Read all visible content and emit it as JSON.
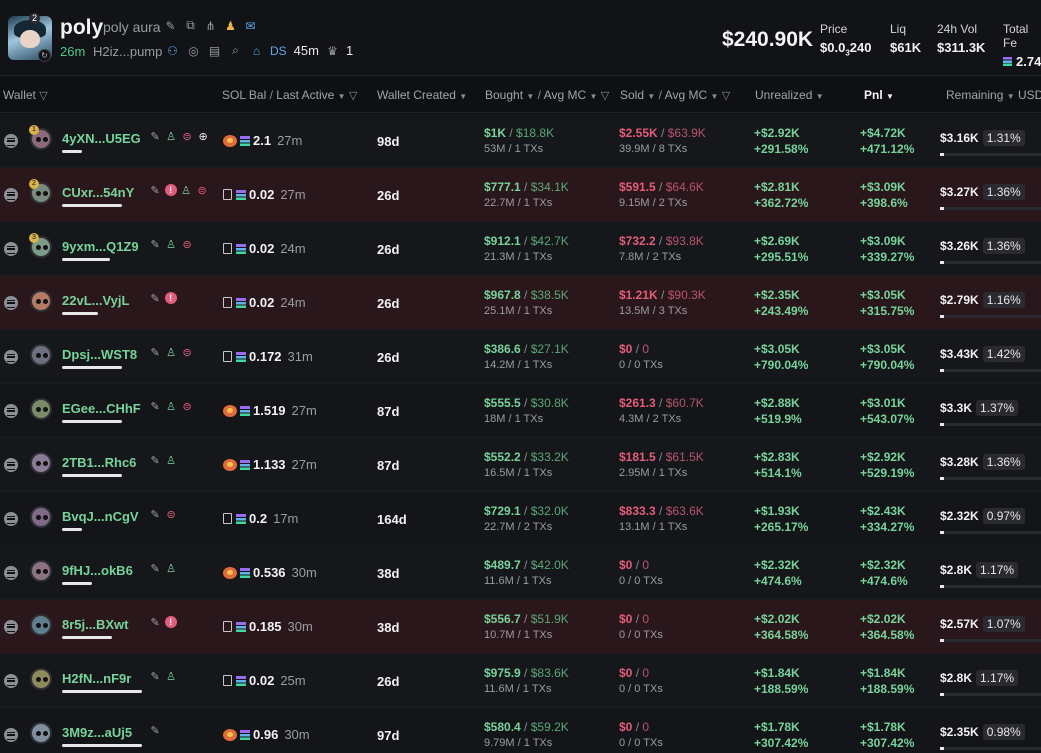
{
  "token": {
    "name": "poly",
    "full_name": "poly aura",
    "badge": "2",
    "age": "26m",
    "address": "H2iz...pump",
    "ds_label": "DS",
    "ds_time": "45m",
    "holders_count": "1"
  },
  "stats": {
    "market_cap": "$240.90K",
    "price_label": "Price",
    "price_value_prefix": "$0.0",
    "price_value_sub": "3",
    "price_value_suffix": "240",
    "liq_label": "Liq",
    "liq_value": "$61K",
    "vol_label": "24h Vol",
    "vol_value": "$311.3K",
    "fees_label": "Total Fe",
    "fees_value": "2.74"
  },
  "columns": {
    "wallet": "Wallet",
    "sol_bal": "SOL Bal",
    "last_active": "Last Active",
    "wallet_created": "Wallet Created",
    "bought": "Bought",
    "avg_mc": "Avg MC",
    "sold": "Sold",
    "sold_avg_mc": "Avg MC",
    "unrealized": "Unrealized",
    "pnl": "Pnl",
    "remaining": "Remaining",
    "usd": "USD"
  },
  "rows": [
    {
      "name": "4yXN...U5EG",
      "rank": "1",
      "exchange": true,
      "sol": "2.1",
      "last": "27m",
      "created": "98d",
      "b_usd": "$1K",
      "b_mc": "$18.8K",
      "b_sub": "53M / 1 TXs",
      "s_usd": "$2.55K",
      "s_mc": "$63.9K",
      "s_sub": "39.9M / 8 TXs",
      "u_usd": "+$2.92K",
      "u_pct": "+291.58%",
      "p_usd": "+$4.72K",
      "p_pct": "+471.12%",
      "rem": "$3.16K",
      "rem_pct": "1.31%"
    },
    {
      "name": "CUxr...54nY",
      "rank": "2",
      "exchange": false,
      "sol": "0.02",
      "last": "27m",
      "created": "26d",
      "b_usd": "$777.1",
      "b_mc": "$34.1K",
      "b_sub": "22.7M / 1 TXs",
      "s_usd": "$591.5",
      "s_mc": "$64.6K",
      "s_sub": "9.15M / 2 TXs",
      "u_usd": "+$2.81K",
      "u_pct": "+362.72%",
      "p_usd": "+$3.09K",
      "p_pct": "+398.6%",
      "rem": "$3.27K",
      "rem_pct": "1.36%"
    },
    {
      "name": "9yxm...Q1Z9",
      "rank": "3",
      "exchange": false,
      "sol": "0.02",
      "last": "24m",
      "created": "26d",
      "b_usd": "$912.1",
      "b_mc": "$42.7K",
      "b_sub": "21.3M / 1 TXs",
      "s_usd": "$732.2",
      "s_mc": "$93.8K",
      "s_sub": "7.8M / 2 TXs",
      "u_usd": "+$2.69K",
      "u_pct": "+295.51%",
      "p_usd": "+$3.09K",
      "p_pct": "+339.27%",
      "rem": "$3.26K",
      "rem_pct": "1.36%"
    },
    {
      "name": "22vL...VyjL",
      "rank": "",
      "exchange": false,
      "sol": "0.02",
      "last": "24m",
      "created": "26d",
      "b_usd": "$967.8",
      "b_mc": "$38.5K",
      "b_sub": "25.1M / 1 TXs",
      "s_usd": "$1.21K",
      "s_mc": "$90.3K",
      "s_sub": "13.5M / 3 TXs",
      "u_usd": "+$2.35K",
      "u_pct": "+243.49%",
      "p_usd": "+$3.05K",
      "p_pct": "+315.75%",
      "rem": "$2.79K",
      "rem_pct": "1.16%"
    },
    {
      "name": "Dpsj...WST8",
      "rank": "",
      "exchange": false,
      "sol": "0.172",
      "last": "31m",
      "created": "26d",
      "b_usd": "$386.6",
      "b_mc": "$27.1K",
      "b_sub": "14.2M / 1 TXs",
      "s_usd": "$0",
      "s_mc": "0",
      "s_sub": "0 / 0 TXs",
      "u_usd": "+$3.05K",
      "u_pct": "+790.04%",
      "p_usd": "+$3.05K",
      "p_pct": "+790.04%",
      "rem": "$3.43K",
      "rem_pct": "1.42%"
    },
    {
      "name": "EGee...CHhF",
      "rank": "",
      "exchange": true,
      "sol": "1.519",
      "last": "27m",
      "created": "87d",
      "b_usd": "$555.5",
      "b_mc": "$30.8K",
      "b_sub": "18M / 1 TXs",
      "s_usd": "$261.3",
      "s_mc": "$60.7K",
      "s_sub": "4.3M / 2 TXs",
      "u_usd": "+$2.88K",
      "u_pct": "+519.9%",
      "p_usd": "+$3.01K",
      "p_pct": "+543.07%",
      "rem": "$3.3K",
      "rem_pct": "1.37%"
    },
    {
      "name": "2TB1...Rhc6",
      "rank": "",
      "exchange": true,
      "sol": "1.133",
      "last": "27m",
      "created": "87d",
      "b_usd": "$552.2",
      "b_mc": "$33.2K",
      "b_sub": "16.5M / 1 TXs",
      "s_usd": "$181.5",
      "s_mc": "$61.5K",
      "s_sub": "2.95M / 1 TXs",
      "u_usd": "+$2.83K",
      "u_pct": "+514.1%",
      "p_usd": "+$2.92K",
      "p_pct": "+529.19%",
      "rem": "$3.28K",
      "rem_pct": "1.36%"
    },
    {
      "name": "BvqJ...nCgV",
      "rank": "",
      "exchange": false,
      "sol": "0.2",
      "last": "17m",
      "created": "164d",
      "b_usd": "$729.1",
      "b_mc": "$32.0K",
      "b_sub": "22.7M / 2 TXs",
      "s_usd": "$833.3",
      "s_mc": "$63.6K",
      "s_sub": "13.1M / 1 TXs",
      "u_usd": "+$1.93K",
      "u_pct": "+265.17%",
      "p_usd": "+$2.43K",
      "p_pct": "+334.27%",
      "rem": "$2.32K",
      "rem_pct": "0.97%"
    },
    {
      "name": "9fHJ...okB6",
      "rank": "",
      "exchange": true,
      "sol": "0.536",
      "last": "30m",
      "created": "38d",
      "b_usd": "$489.7",
      "b_mc": "$42.0K",
      "b_sub": "11.6M / 1 TXs",
      "s_usd": "$0",
      "s_mc": "0",
      "s_sub": "0 / 0 TXs",
      "u_usd": "+$2.32K",
      "u_pct": "+474.6%",
      "p_usd": "+$2.32K",
      "p_pct": "+474.6%",
      "rem": "$2.8K",
      "rem_pct": "1.17%"
    },
    {
      "name": "8r5j...BXwt",
      "rank": "",
      "exchange": false,
      "sol": "0.185",
      "last": "30m",
      "created": "38d",
      "b_usd": "$556.7",
      "b_mc": "$51.9K",
      "b_sub": "10.7M / 1 TXs",
      "s_usd": "$0",
      "s_mc": "0",
      "s_sub": "0 / 0 TXs",
      "u_usd": "+$2.02K",
      "u_pct": "+364.58%",
      "p_usd": "+$2.02K",
      "p_pct": "+364.58%",
      "rem": "$2.57K",
      "rem_pct": "1.07%"
    },
    {
      "name": "H2fN...nF9r",
      "rank": "",
      "exchange": false,
      "sol": "0.02",
      "last": "25m",
      "created": "26d",
      "b_usd": "$975.9",
      "b_mc": "$83.6K",
      "b_sub": "11.6M / 1 TXs",
      "s_usd": "$0",
      "s_mc": "0",
      "s_sub": "0 / 0 TXs",
      "u_usd": "+$1.84K",
      "u_pct": "+188.59%",
      "p_usd": "+$1.84K",
      "p_pct": "+188.59%",
      "rem": "$2.8K",
      "rem_pct": "1.17%"
    },
    {
      "name": "3M9z...aUj5",
      "rank": "",
      "exchange": true,
      "sol": "0.96",
      "last": "30m",
      "created": "97d",
      "b_usd": "$580.4",
      "b_mc": "$59.2K",
      "b_sub": "9.79M / 1 TXs",
      "s_usd": "$0",
      "s_mc": "0",
      "s_sub": "0 / 0 TXs",
      "u_usd": "+$1.78K",
      "u_pct": "+307.42%",
      "p_usd": "+$1.78K",
      "p_pct": "+307.42%",
      "rem": "$2.35K",
      "rem_pct": "0.98%"
    }
  ],
  "colors": {
    "green": "#78d39a",
    "red": "#e35d7a",
    "row_flag": "#2a171c",
    "row_alt": "#141519"
  }
}
